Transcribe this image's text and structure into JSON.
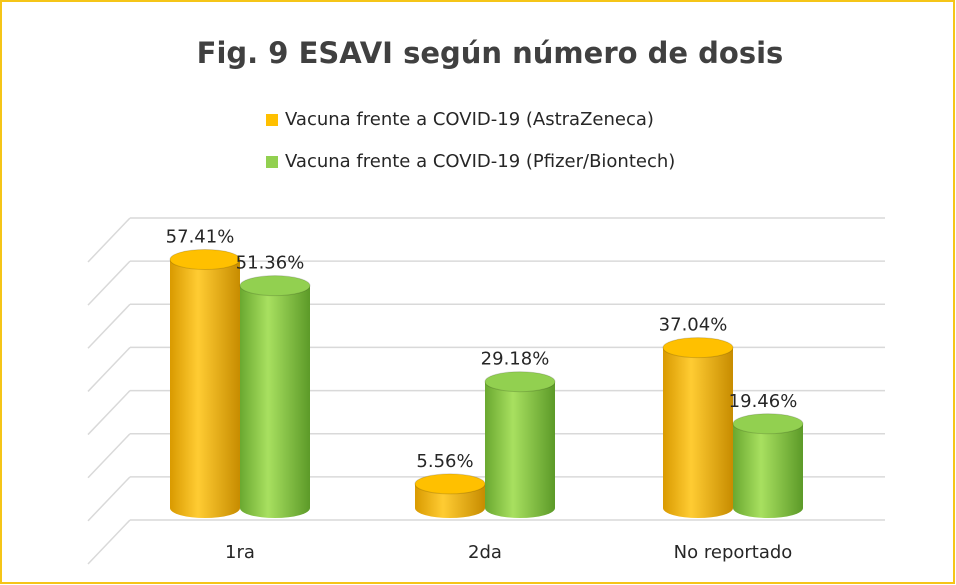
{
  "chart_data": {
    "type": "bar",
    "title": "Fig. 9 ESAVI según número de dosis",
    "categories": [
      "1ra",
      "2da",
      "No reportado"
    ],
    "series": [
      {
        "name": "Vacuna frente a COVID-19 (AstraZeneca)",
        "color": "#ffc000",
        "values": [
          57.41,
          5.56,
          37.04
        ],
        "value_labels": [
          "57.41%",
          "5.56%",
          "37.04%"
        ]
      },
      {
        "name": "Vacuna frente a COVID-19 (Pfizer/Biontech)",
        "color": "#92d050",
        "values": [
          51.36,
          29.18,
          19.46
        ],
        "value_labels": [
          "51.36%",
          "29.18%",
          "19.46%"
        ]
      }
    ],
    "ylim": [
      0,
      70
    ],
    "yticks": [
      0,
      10,
      20,
      30,
      40,
      50,
      60,
      70
    ],
    "grid": true
  }
}
